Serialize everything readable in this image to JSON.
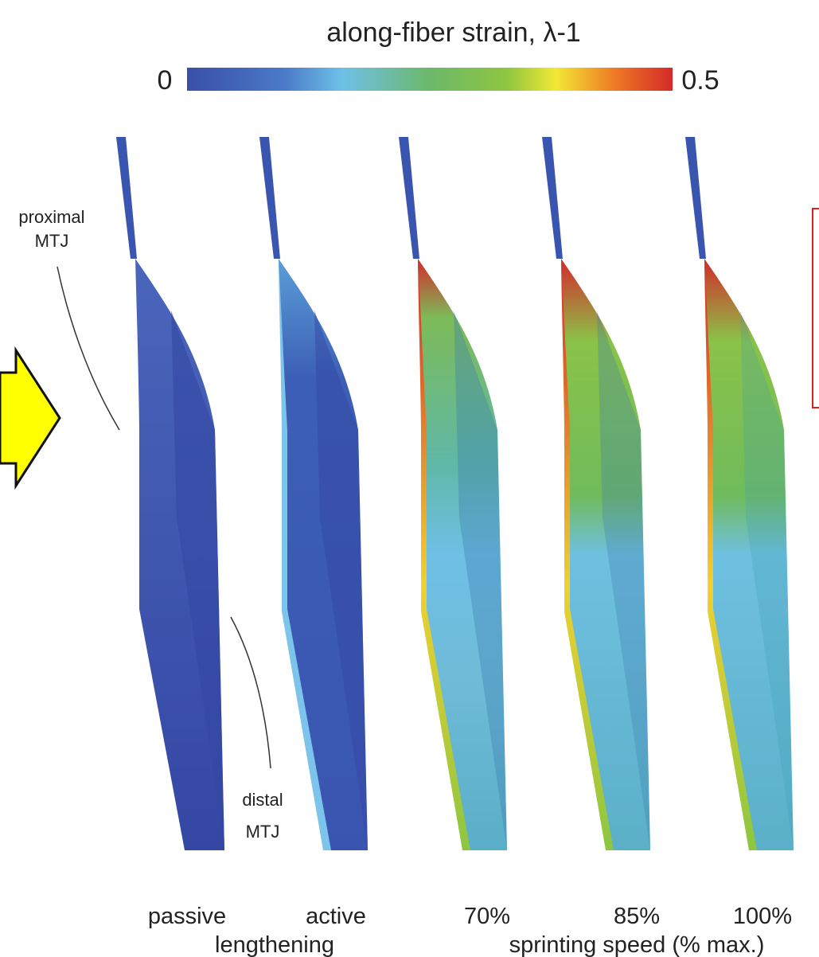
{
  "title": "along-fiber strain, λ-1",
  "colorbar": {
    "min_label": "0",
    "max_label": "0.5"
  },
  "annotations": {
    "proximal": [
      "proximal",
      "MTJ"
    ],
    "distal": [
      "distal",
      "MTJ"
    ]
  },
  "panels": [
    "passive",
    "active",
    "70%",
    "85%",
    "100%"
  ],
  "groups": [
    "lengthening",
    "sprinting speed (% max.)"
  ]
}
